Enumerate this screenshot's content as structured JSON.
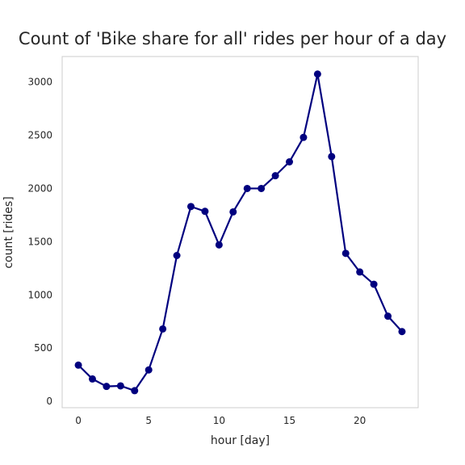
{
  "chart_data": {
    "type": "line",
    "title": "Count of 'Bike share for all' rides per hour of a day",
    "xlabel": "hour [day]",
    "ylabel": "count [rides]",
    "x": [
      0,
      1,
      2,
      3,
      4,
      5,
      6,
      7,
      8,
      9,
      10,
      11,
      12,
      13,
      14,
      15,
      16,
      17,
      18,
      19,
      20,
      21,
      22,
      23
    ],
    "series": [
      {
        "values": [
          340,
          210,
          140,
          145,
          100,
          295,
          680,
          1370,
          1830,
          1785,
          1470,
          1780,
          2000,
          2000,
          2120,
          2250,
          2480,
          3075,
          2300,
          1390,
          1215,
          1100,
          800,
          655
        ],
        "color": "#00007f"
      }
    ],
    "xticks": [
      0,
      5,
      10,
      15,
      20
    ],
    "yticks": [
      0,
      500,
      1000,
      1500,
      2000,
      2500,
      3000
    ],
    "xlim": [
      -1.15,
      24.15
    ],
    "ylim": [
      -60,
      3240
    ],
    "grid": false,
    "legend": "none"
  }
}
